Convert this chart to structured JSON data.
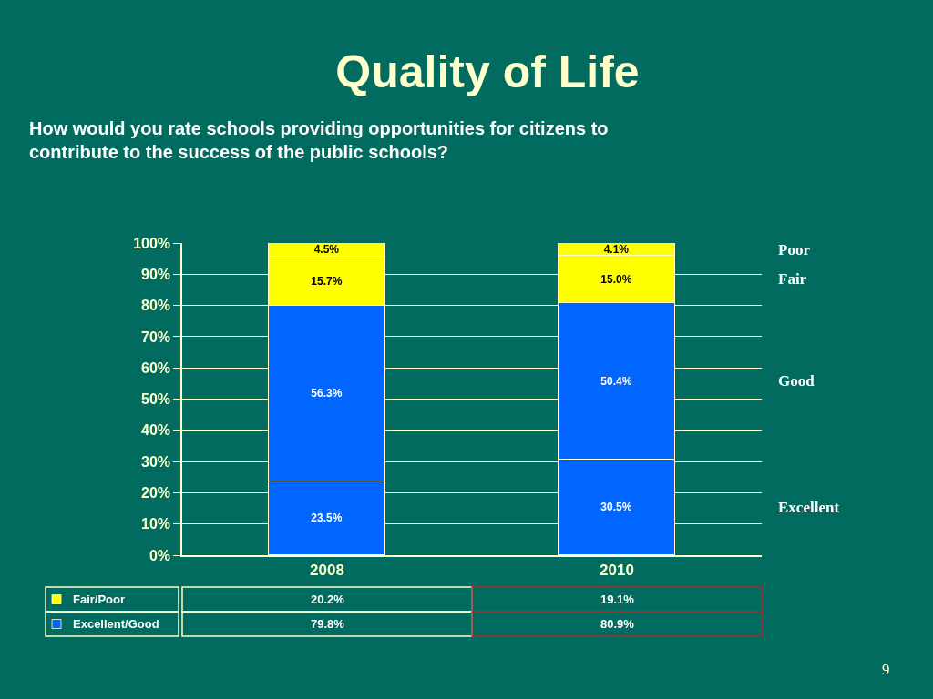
{
  "chart_data": [
    {
      "type": "bar",
      "title": "Quality of Life",
      "subtitle": "How would you rate schools providing opportunities for citizens to contribute to the success of the public schools?",
      "categories": [
        "2008",
        "2010"
      ],
      "stacked": true,
      "series": [
        {
          "name": "Excellent",
          "color": "#0066ff",
          "values": [
            23.5,
            30.5
          ],
          "value_labels": [
            "23.5%",
            "30.5%"
          ]
        },
        {
          "name": "Good",
          "color": "#0066ff",
          "values": [
            56.3,
            50.4
          ],
          "value_labels": [
            "56.3%",
            "50.4%"
          ]
        },
        {
          "name": "Fair",
          "color": "#ffff00",
          "values": [
            15.7,
            15.0
          ],
          "value_labels": [
            "15.7%",
            "15.0%"
          ]
        },
        {
          "name": "Poor",
          "color": "#ffff00",
          "values": [
            4.5,
            4.1
          ],
          "value_labels": [
            "4.5%",
            "4.1%"
          ]
        }
      ],
      "ylim": [
        0,
        100
      ],
      "yticks": [
        {
          "value": 0,
          "label": "0%"
        },
        {
          "value": 10,
          "label": "10%"
        },
        {
          "value": 20,
          "label": "20%"
        },
        {
          "value": 30,
          "label": "30%"
        },
        {
          "value": 40,
          "label": "40%"
        },
        {
          "value": 50,
          "label": "50%"
        },
        {
          "value": 60,
          "label": "60%"
        },
        {
          "value": 70,
          "label": "70%"
        },
        {
          "value": 80,
          "label": "80%"
        },
        {
          "value": 90,
          "label": "90%"
        },
        {
          "value": 100,
          "label": "100%"
        }
      ],
      "grid": "y",
      "annotations": [
        "9"
      ]
    },
    {
      "type": "other",
      "series": [
        {
          "name": "Fair/Poor",
          "color": "#ffff00"
        },
        {
          "name": "Excellent/Good",
          "color": "#0066ff"
        }
      ],
      "annotations": [
        "20.2%",
        "19.1%",
        "79.8%",
        "80.9%"
      ]
    }
  ]
}
